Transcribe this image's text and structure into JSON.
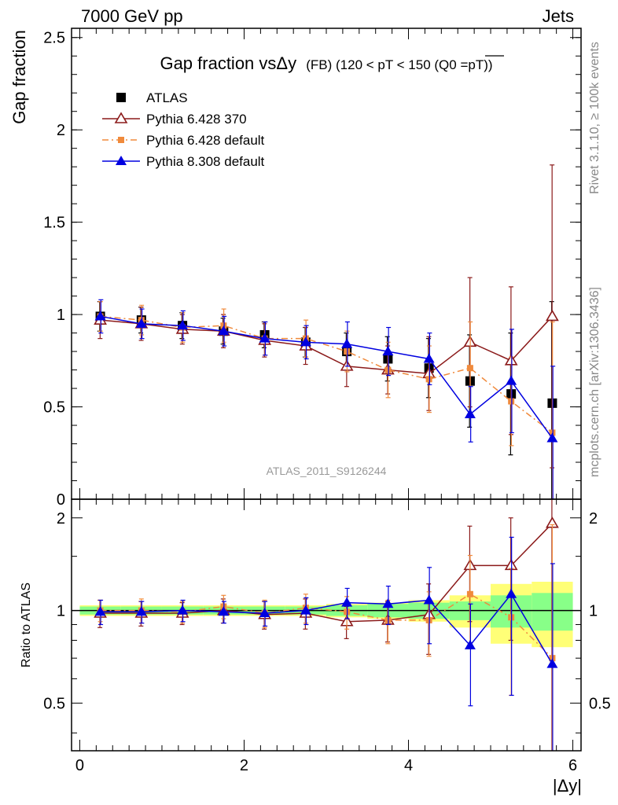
{
  "header": {
    "left": "7000 GeV pp",
    "right": "Jets"
  },
  "side_labels": {
    "rivet": "Rivet 3.1.10, ≥ 100k events",
    "mcplots": "mcplots.cern.ch [arXiv:1306.3436]"
  },
  "chart_data": [
    {
      "type": "scatter",
      "title": "Gap fraction vsΔy",
      "title_suffix": "(FB) (120 < pT < 150 (Q0 =pT))",
      "ylabel": "Gap fraction",
      "xlabel": "|Δy|",
      "xlim": [
        -0.1,
        6.1
      ],
      "ylim": [
        0,
        2.55
      ],
      "yticks": [
        0,
        0.5,
        1,
        1.5,
        2,
        2.5
      ],
      "ytick_labels": [
        "0",
        "0.5",
        "1",
        "1.5",
        "2",
        "2.5"
      ],
      "watermark": "ATLAS_2011_S9126244",
      "legend_position": "top-left",
      "x": [
        0.25,
        0.75,
        1.25,
        1.75,
        2.25,
        2.75,
        3.25,
        3.75,
        4.25,
        4.75,
        5.25,
        5.75
      ],
      "series": [
        {
          "name": "ATLAS",
          "color": "#000000",
          "marker": "square",
          "values": [
            0.99,
            0.97,
            0.94,
            0.91,
            0.89,
            0.85,
            0.8,
            0.76,
            0.71,
            0.64,
            0.57,
            0.52
          ],
          "errors": [
            0.08,
            0.07,
            0.07,
            0.07,
            0.07,
            0.08,
            0.1,
            0.12,
            0.16,
            0.25,
            0.33,
            0.55
          ]
        },
        {
          "name": "Pythia 6.428 370",
          "color": "#8b1a1a",
          "marker": "triangle-open",
          "line": "solid",
          "values": [
            0.97,
            0.95,
            0.92,
            0.91,
            0.86,
            0.83,
            0.72,
            0.7,
            0.68,
            0.85,
            0.75,
            0.99
          ],
          "errors": [
            0.1,
            0.09,
            0.08,
            0.09,
            0.09,
            0.1,
            0.11,
            0.13,
            0.2,
            0.35,
            0.4,
            0.82
          ]
        },
        {
          "name": "Pythia 6.428 default",
          "color": "#f08a3c",
          "marker": "square-small",
          "line": "dashdot",
          "values": [
            0.99,
            0.97,
            0.93,
            0.94,
            0.87,
            0.87,
            0.8,
            0.7,
            0.65,
            0.71,
            0.53,
            0.36
          ],
          "errors": [
            0.08,
            0.08,
            0.08,
            0.09,
            0.09,
            0.1,
            0.11,
            0.15,
            0.18,
            0.25,
            0.24,
            0.6
          ]
        },
        {
          "name": "Pythia 8.308 default",
          "color": "#0000e0",
          "marker": "triangle",
          "line": "solid",
          "values": [
            0.99,
            0.95,
            0.94,
            0.91,
            0.87,
            0.85,
            0.84,
            0.8,
            0.76,
            0.46,
            0.64,
            0.33
          ],
          "errors": [
            0.09,
            0.08,
            0.08,
            0.08,
            0.09,
            0.09,
            0.12,
            0.13,
            0.14,
            0.15,
            0.28,
            0.39
          ]
        }
      ]
    },
    {
      "type": "scatter",
      "ylabel": "Ratio to ATLAS",
      "xlabel": "|Δy|",
      "xlim": [
        -0.1,
        6.1
      ],
      "ylim": [
        0.35,
        2.3
      ],
      "yticks": [
        0.5,
        1,
        2
      ],
      "ytick_labels": [
        "0.5",
        "1",
        "2"
      ],
      "xticks": [
        0,
        2,
        4,
        6
      ],
      "xtick_labels": [
        "0",
        "2",
        "4",
        "6"
      ],
      "reference": 1,
      "uncertainty_bands": {
        "x_edges": [
          0,
          0.5,
          1,
          1.5,
          2,
          2.5,
          3,
          3.5,
          4,
          4.5,
          5,
          5.5,
          6
        ],
        "inner": [
          0.03,
          0.03,
          0.03,
          0.03,
          0.03,
          0.03,
          0.04,
          0.05,
          0.06,
          0.07,
          0.12,
          0.14
        ],
        "outer": [
          0.01,
          0.01,
          0.01,
          0.01,
          0.01,
          0.01,
          0.01,
          0.01,
          0.02,
          0.05,
          0.1,
          0.1
        ],
        "inner_color": "#88ff88",
        "outer_color": "#ffff77"
      },
      "x": [
        0.25,
        0.75,
        1.25,
        1.75,
        2.25,
        2.75,
        3.25,
        3.75,
        4.25,
        4.75,
        5.25,
        5.75
      ],
      "series": [
        {
          "name": "Pythia 6.428 370",
          "color": "#8b1a1a",
          "marker": "triangle-open",
          "line": "solid",
          "values": [
            0.98,
            0.98,
            0.98,
            1.0,
            0.97,
            0.98,
            0.92,
            0.93,
            0.97,
            1.4,
            1.4,
            1.92
          ],
          "errors": [
            0.1,
            0.09,
            0.08,
            0.09,
            0.1,
            0.11,
            0.11,
            0.14,
            0.25,
            0.48,
            0.6,
            1.6
          ]
        },
        {
          "name": "Pythia 6.428 default",
          "color": "#f08a3c",
          "marker": "square-small",
          "line": "dashdot",
          "values": [
            1.0,
            1.0,
            0.99,
            1.03,
            0.98,
            1.02,
            0.99,
            0.93,
            0.93,
            1.13,
            0.95,
            0.7
          ],
          "errors": [
            0.08,
            0.09,
            0.08,
            0.09,
            0.1,
            0.11,
            0.12,
            0.15,
            0.22,
            0.38,
            0.42,
            1.2
          ]
        },
        {
          "name": "Pythia 8.308 default",
          "color": "#0000e0",
          "marker": "triangle",
          "line": "solid",
          "values": [
            0.99,
            0.99,
            1.0,
            0.99,
            0.98,
            1.0,
            1.06,
            1.05,
            1.08,
            0.77,
            1.13,
            0.67
          ],
          "errors": [
            0.09,
            0.08,
            0.08,
            0.08,
            0.09,
            0.1,
            0.12,
            0.15,
            0.3,
            0.28,
            0.6,
            0.75
          ]
        }
      ]
    }
  ]
}
